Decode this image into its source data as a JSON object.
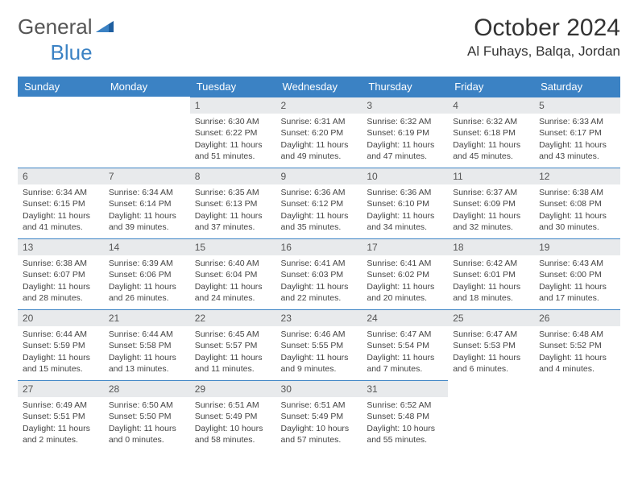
{
  "logo": {
    "text1": "General",
    "text2": "Blue"
  },
  "title": "October 2024",
  "location": "Al Fuhays, Balqa, Jordan",
  "colors": {
    "header_bg": "#3b82c4",
    "header_text": "#ffffff",
    "daynum_bg": "#e8eaec",
    "border": "#3b82c4",
    "body_text": "#444444"
  },
  "weekdays": [
    "Sunday",
    "Monday",
    "Tuesday",
    "Wednesday",
    "Thursday",
    "Friday",
    "Saturday"
  ],
  "grid": [
    [
      null,
      null,
      {
        "n": "1",
        "sr": "6:30 AM",
        "ss": "6:22 PM",
        "dl": "11 hours and 51 minutes."
      },
      {
        "n": "2",
        "sr": "6:31 AM",
        "ss": "6:20 PM",
        "dl": "11 hours and 49 minutes."
      },
      {
        "n": "3",
        "sr": "6:32 AM",
        "ss": "6:19 PM",
        "dl": "11 hours and 47 minutes."
      },
      {
        "n": "4",
        "sr": "6:32 AM",
        "ss": "6:18 PM",
        "dl": "11 hours and 45 minutes."
      },
      {
        "n": "5",
        "sr": "6:33 AM",
        "ss": "6:17 PM",
        "dl": "11 hours and 43 minutes."
      }
    ],
    [
      {
        "n": "6",
        "sr": "6:34 AM",
        "ss": "6:15 PM",
        "dl": "11 hours and 41 minutes."
      },
      {
        "n": "7",
        "sr": "6:34 AM",
        "ss": "6:14 PM",
        "dl": "11 hours and 39 minutes."
      },
      {
        "n": "8",
        "sr": "6:35 AM",
        "ss": "6:13 PM",
        "dl": "11 hours and 37 minutes."
      },
      {
        "n": "9",
        "sr": "6:36 AM",
        "ss": "6:12 PM",
        "dl": "11 hours and 35 minutes."
      },
      {
        "n": "10",
        "sr": "6:36 AM",
        "ss": "6:10 PM",
        "dl": "11 hours and 34 minutes."
      },
      {
        "n": "11",
        "sr": "6:37 AM",
        "ss": "6:09 PM",
        "dl": "11 hours and 32 minutes."
      },
      {
        "n": "12",
        "sr": "6:38 AM",
        "ss": "6:08 PM",
        "dl": "11 hours and 30 minutes."
      }
    ],
    [
      {
        "n": "13",
        "sr": "6:38 AM",
        "ss": "6:07 PM",
        "dl": "11 hours and 28 minutes."
      },
      {
        "n": "14",
        "sr": "6:39 AM",
        "ss": "6:06 PM",
        "dl": "11 hours and 26 minutes."
      },
      {
        "n": "15",
        "sr": "6:40 AM",
        "ss": "6:04 PM",
        "dl": "11 hours and 24 minutes."
      },
      {
        "n": "16",
        "sr": "6:41 AM",
        "ss": "6:03 PM",
        "dl": "11 hours and 22 minutes."
      },
      {
        "n": "17",
        "sr": "6:41 AM",
        "ss": "6:02 PM",
        "dl": "11 hours and 20 minutes."
      },
      {
        "n": "18",
        "sr": "6:42 AM",
        "ss": "6:01 PM",
        "dl": "11 hours and 18 minutes."
      },
      {
        "n": "19",
        "sr": "6:43 AM",
        "ss": "6:00 PM",
        "dl": "11 hours and 17 minutes."
      }
    ],
    [
      {
        "n": "20",
        "sr": "6:44 AM",
        "ss": "5:59 PM",
        "dl": "11 hours and 15 minutes."
      },
      {
        "n": "21",
        "sr": "6:44 AM",
        "ss": "5:58 PM",
        "dl": "11 hours and 13 minutes."
      },
      {
        "n": "22",
        "sr": "6:45 AM",
        "ss": "5:57 PM",
        "dl": "11 hours and 11 minutes."
      },
      {
        "n": "23",
        "sr": "6:46 AM",
        "ss": "5:55 PM",
        "dl": "11 hours and 9 minutes."
      },
      {
        "n": "24",
        "sr": "6:47 AM",
        "ss": "5:54 PM",
        "dl": "11 hours and 7 minutes."
      },
      {
        "n": "25",
        "sr": "6:47 AM",
        "ss": "5:53 PM",
        "dl": "11 hours and 6 minutes."
      },
      {
        "n": "26",
        "sr": "6:48 AM",
        "ss": "5:52 PM",
        "dl": "11 hours and 4 minutes."
      }
    ],
    [
      {
        "n": "27",
        "sr": "6:49 AM",
        "ss": "5:51 PM",
        "dl": "11 hours and 2 minutes."
      },
      {
        "n": "28",
        "sr": "6:50 AM",
        "ss": "5:50 PM",
        "dl": "11 hours and 0 minutes."
      },
      {
        "n": "29",
        "sr": "6:51 AM",
        "ss": "5:49 PM",
        "dl": "10 hours and 58 minutes."
      },
      {
        "n": "30",
        "sr": "6:51 AM",
        "ss": "5:49 PM",
        "dl": "10 hours and 57 minutes."
      },
      {
        "n": "31",
        "sr": "6:52 AM",
        "ss": "5:48 PM",
        "dl": "10 hours and 55 minutes."
      },
      null,
      null
    ]
  ],
  "labels": {
    "sunrise": "Sunrise:",
    "sunset": "Sunset:",
    "daylight": "Daylight:"
  }
}
